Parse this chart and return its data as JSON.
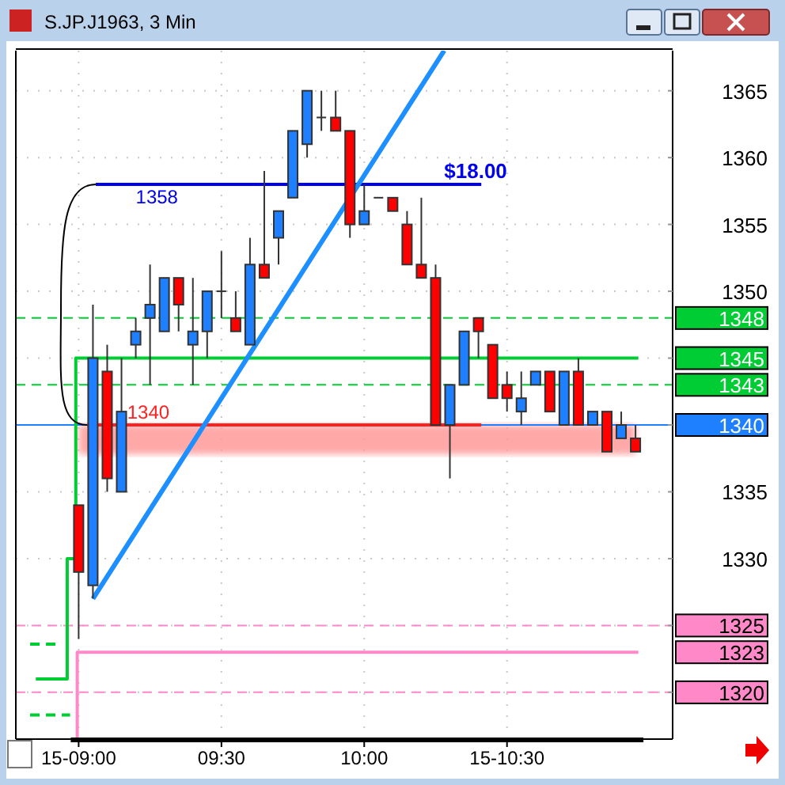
{
  "chart_data": {
    "type": "candlestick",
    "title": "S.JP.J1963, 3 Min",
    "x": [
      9,
      9.05,
      9.1,
      9.15,
      9.2,
      9.25,
      9.3,
      9.35,
      9.4,
      9.45,
      9.5,
      9.55,
      9.6,
      9.65,
      9.7,
      9.75,
      9.8,
      9.85,
      9.9,
      9.95,
      10,
      10.05,
      10.1,
      10.15,
      10.2,
      10.25,
      10.3,
      10.35,
      10.4,
      10.45,
      10.5,
      10.55,
      10.6,
      10.65,
      10.7,
      10.75,
      10.8,
      10.85,
      10.9,
      10.95
    ],
    "ohlc": [
      [
        1334,
        1334,
        1324,
        1329
      ],
      [
        1328,
        1349,
        1327,
        1345
      ],
      [
        1344,
        1346,
        1335,
        1336
      ],
      [
        1335,
        1345,
        1335,
        1341
      ],
      [
        1346,
        1348,
        1345,
        1347
      ],
      [
        1348,
        1352,
        1343,
        1349
      ],
      [
        1347,
        1351,
        1347,
        1351
      ],
      [
        1351,
        1351,
        1347,
        1349
      ],
      [
        1346,
        1351,
        1343,
        1347
      ],
      [
        1347,
        1350,
        1345,
        1350
      ],
      [
        1350,
        1353,
        1348,
        1350
      ],
      [
        1348,
        1350,
        1347,
        1347
      ],
      [
        1346,
        1354,
        1346,
        1352
      ],
      [
        1352,
        1359,
        1351,
        1351
      ],
      [
        1354,
        1356,
        1352,
        1356
      ],
      [
        1357,
        1362,
        1357,
        1362
      ],
      [
        1361,
        1365,
        1360,
        1365
      ],
      [
        1363,
        1365,
        1362,
        1363
      ],
      [
        1363,
        1365,
        1362,
        1362
      ],
      [
        1362,
        1362,
        1354,
        1355
      ],
      [
        1355,
        1358,
        1355,
        1356
      ],
      [
        1357,
        1357,
        1357,
        1357
      ],
      [
        1357,
        1357,
        1356,
        1356
      ],
      [
        1355,
        1356,
        1352,
        1352
      ],
      [
        1352,
        1357,
        1351,
        1351
      ],
      [
        1351,
        1352,
        1340,
        1340
      ],
      [
        1340,
        1343,
        1336,
        1343
      ],
      [
        1343,
        1347,
        1343,
        1347
      ],
      [
        1348,
        1348,
        1345,
        1347
      ],
      [
        1346,
        1346,
        1342,
        1342
      ],
      [
        1343,
        1344,
        1341,
        1342
      ],
      [
        1341,
        1344,
        1340,
        1342
      ],
      [
        1343,
        1344,
        1343,
        1344
      ],
      [
        1344,
        1344,
        1341,
        1341
      ],
      [
        1340,
        1344,
        1340,
        1344
      ],
      [
        1344,
        1345,
        1340,
        1340
      ],
      [
        1340,
        1341,
        1340,
        1341
      ],
      [
        1341,
        1341,
        1338,
        1338
      ],
      [
        1339,
        1341,
        1339,
        1340
      ],
      [
        1339,
        1340,
        1338,
        1338
      ]
    ],
    "series": [
      {
        "type": "line",
        "color": "#00cc33",
        "line_style": "dashed",
        "x": [
          8.83,
          8.94
        ],
        "values": [
          1323.6,
          1323.6
        ]
      },
      {
        "type": "line",
        "color": "#00cc33",
        "line_style": "dashed",
        "x": [
          8.83,
          8.97
        ],
        "values": [
          1318.3,
          1318.3
        ]
      },
      {
        "type": "line",
        "name": "1345",
        "color": "#00cc33",
        "x": [
          8.85,
          8.96,
          8.96,
          8.99,
          8.99,
          10.96
        ],
        "values": [
          1321,
          1321,
          1330,
          1330,
          1345,
          1345
        ]
      },
      {
        "type": "line",
        "name": "1323",
        "color": "#ff88c8",
        "x": [
          8.995,
          8.995,
          10.96
        ],
        "values": [
          1316.5,
          1323,
          1323
        ]
      },
      {
        "type": "line",
        "color": "#0000ee",
        "x": [
          9.06,
          10.41
        ],
        "values": [
          1358,
          1358
        ]
      },
      {
        "type": "line",
        "color": "#ff2020",
        "x": [
          9.03,
          10.41
        ],
        "values": [
          1340,
          1340
        ]
      },
      {
        "type": "line",
        "color": "#1e8fff",
        "x": [
          9.05,
          10.28
        ],
        "values": [
          1327,
          1368
        ]
      }
    ],
    "ref_lines": [
      {
        "axis": "y",
        "value": 1348,
        "label": "1348",
        "color": "#00cc33",
        "line_style": "dashed"
      },
      {
        "axis": "y",
        "value": 1343,
        "label": "1343",
        "color": "#00cc33",
        "line_style": "dashed"
      },
      {
        "axis": "y",
        "value": 1340,
        "label": "1340",
        "color": "#1e7fff",
        "line_style": "solid"
      },
      {
        "axis": "y",
        "value": 1325,
        "label": "1325",
        "color": "#ff88c8",
        "line_style": "dashed"
      },
      {
        "axis": "y",
        "value": 1320,
        "label": "1320",
        "color": "#ff88c8",
        "line_style": "dashed"
      }
    ],
    "bands": [
      {
        "axis": "y",
        "from": 1337.8,
        "to": 1340,
        "color": "#ff9999"
      }
    ],
    "annotations": [
      {
        "text": "1358",
        "x": 9.2,
        "y": 1358
      },
      {
        "text": "$18.00",
        "x": 10.28,
        "y": 1358
      },
      {
        "text": "1340",
        "x": 9.17,
        "y": 1340
      }
    ],
    "xlim": [
      8.78,
      11.08
    ],
    "ylim": [
      1316.5,
      1368
    ],
    "xticks": [
      {
        "value": 9,
        "label": "15-09:00"
      },
      {
        "value": 9.5,
        "label": "09:30"
      },
      {
        "value": 10,
        "label": "10:00"
      },
      {
        "value": 10.5,
        "label": "15-10:30"
      }
    ],
    "yticks": [
      {
        "value": 1320,
        "label": null
      },
      {
        "value": 1325,
        "label": null
      },
      1330,
      1335,
      {
        "value": 1340,
        "label": null
      },
      {
        "value": 1345,
        "label": null
      },
      1350,
      1355,
      1360,
      1365
    ],
    "grid": true,
    "legend": "right"
  }
}
